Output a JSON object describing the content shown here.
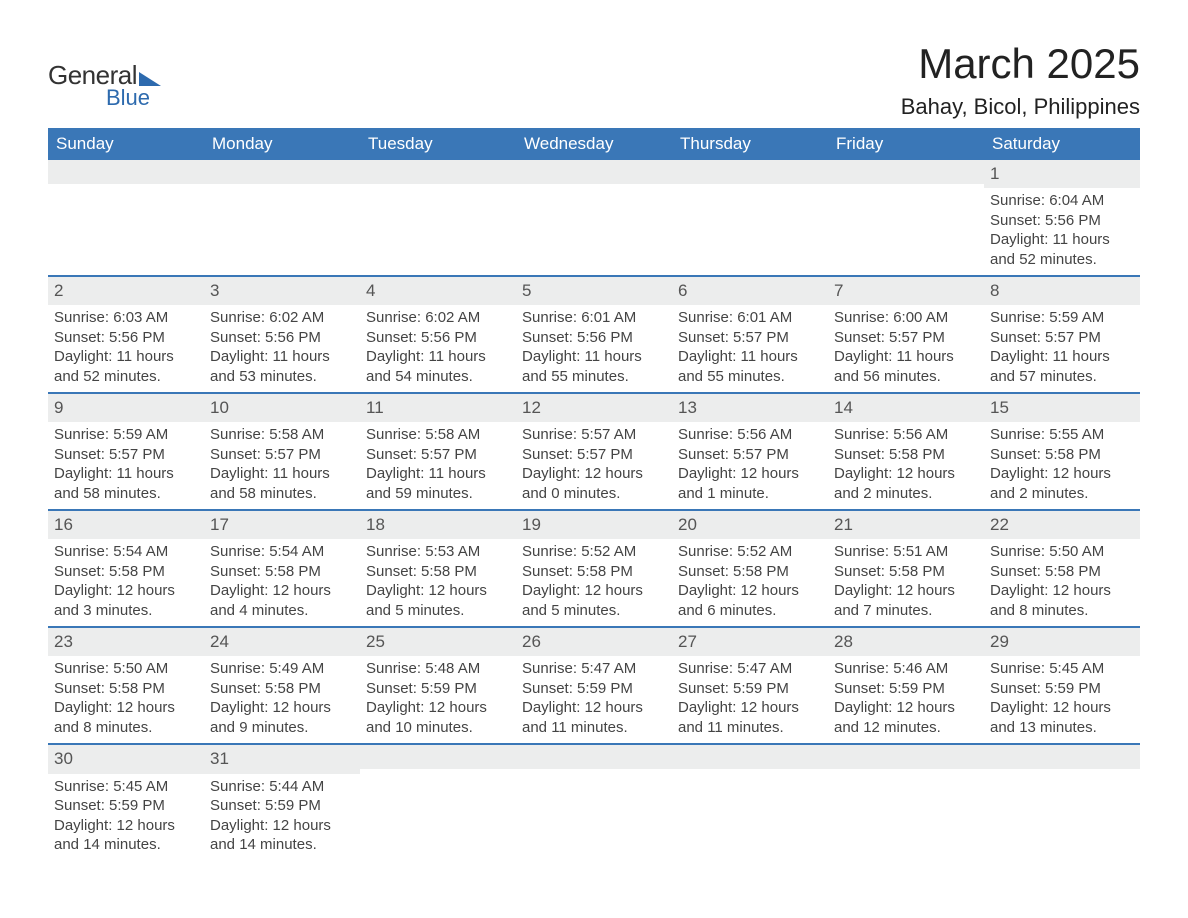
{
  "logo": {
    "text_top": "General",
    "text_bottom": "Blue"
  },
  "title": "March 2025",
  "location": "Bahay, Bicol, Philippines",
  "day_headers": [
    "Sunday",
    "Monday",
    "Tuesday",
    "Wednesday",
    "Thursday",
    "Friday",
    "Saturday"
  ],
  "colors": {
    "header_bg": "#3a77b7",
    "header_fg": "#ffffff",
    "daynum_bg": "#eceded",
    "row_divider": "#3a77b7",
    "logo_accent": "#2d6aae"
  },
  "first_weekday_index": 6,
  "days": [
    {
      "n": 1,
      "sunrise": "6:04 AM",
      "sunset": "5:56 PM",
      "daylight": "11 hours and 52 minutes."
    },
    {
      "n": 2,
      "sunrise": "6:03 AM",
      "sunset": "5:56 PM",
      "daylight": "11 hours and 52 minutes."
    },
    {
      "n": 3,
      "sunrise": "6:02 AM",
      "sunset": "5:56 PM",
      "daylight": "11 hours and 53 minutes."
    },
    {
      "n": 4,
      "sunrise": "6:02 AM",
      "sunset": "5:56 PM",
      "daylight": "11 hours and 54 minutes."
    },
    {
      "n": 5,
      "sunrise": "6:01 AM",
      "sunset": "5:56 PM",
      "daylight": "11 hours and 55 minutes."
    },
    {
      "n": 6,
      "sunrise": "6:01 AM",
      "sunset": "5:57 PM",
      "daylight": "11 hours and 55 minutes."
    },
    {
      "n": 7,
      "sunrise": "6:00 AM",
      "sunset": "5:57 PM",
      "daylight": "11 hours and 56 minutes."
    },
    {
      "n": 8,
      "sunrise": "5:59 AM",
      "sunset": "5:57 PM",
      "daylight": "11 hours and 57 minutes."
    },
    {
      "n": 9,
      "sunrise": "5:59 AM",
      "sunset": "5:57 PM",
      "daylight": "11 hours and 58 minutes."
    },
    {
      "n": 10,
      "sunrise": "5:58 AM",
      "sunset": "5:57 PM",
      "daylight": "11 hours and 58 minutes."
    },
    {
      "n": 11,
      "sunrise": "5:58 AM",
      "sunset": "5:57 PM",
      "daylight": "11 hours and 59 minutes."
    },
    {
      "n": 12,
      "sunrise": "5:57 AM",
      "sunset": "5:57 PM",
      "daylight": "12 hours and 0 minutes."
    },
    {
      "n": 13,
      "sunrise": "5:56 AM",
      "sunset": "5:57 PM",
      "daylight": "12 hours and 1 minute."
    },
    {
      "n": 14,
      "sunrise": "5:56 AM",
      "sunset": "5:58 PM",
      "daylight": "12 hours and 2 minutes."
    },
    {
      "n": 15,
      "sunrise": "5:55 AM",
      "sunset": "5:58 PM",
      "daylight": "12 hours and 2 minutes."
    },
    {
      "n": 16,
      "sunrise": "5:54 AM",
      "sunset": "5:58 PM",
      "daylight": "12 hours and 3 minutes."
    },
    {
      "n": 17,
      "sunrise": "5:54 AM",
      "sunset": "5:58 PM",
      "daylight": "12 hours and 4 minutes."
    },
    {
      "n": 18,
      "sunrise": "5:53 AM",
      "sunset": "5:58 PM",
      "daylight": "12 hours and 5 minutes."
    },
    {
      "n": 19,
      "sunrise": "5:52 AM",
      "sunset": "5:58 PM",
      "daylight": "12 hours and 5 minutes."
    },
    {
      "n": 20,
      "sunrise": "5:52 AM",
      "sunset": "5:58 PM",
      "daylight": "12 hours and 6 minutes."
    },
    {
      "n": 21,
      "sunrise": "5:51 AM",
      "sunset": "5:58 PM",
      "daylight": "12 hours and 7 minutes."
    },
    {
      "n": 22,
      "sunrise": "5:50 AM",
      "sunset": "5:58 PM",
      "daylight": "12 hours and 8 minutes."
    },
    {
      "n": 23,
      "sunrise": "5:50 AM",
      "sunset": "5:58 PM",
      "daylight": "12 hours and 8 minutes."
    },
    {
      "n": 24,
      "sunrise": "5:49 AM",
      "sunset": "5:58 PM",
      "daylight": "12 hours and 9 minutes."
    },
    {
      "n": 25,
      "sunrise": "5:48 AM",
      "sunset": "5:59 PM",
      "daylight": "12 hours and 10 minutes."
    },
    {
      "n": 26,
      "sunrise": "5:47 AM",
      "sunset": "5:59 PM",
      "daylight": "12 hours and 11 minutes."
    },
    {
      "n": 27,
      "sunrise": "5:47 AM",
      "sunset": "5:59 PM",
      "daylight": "12 hours and 11 minutes."
    },
    {
      "n": 28,
      "sunrise": "5:46 AM",
      "sunset": "5:59 PM",
      "daylight": "12 hours and 12 minutes."
    },
    {
      "n": 29,
      "sunrise": "5:45 AM",
      "sunset": "5:59 PM",
      "daylight": "12 hours and 13 minutes."
    },
    {
      "n": 30,
      "sunrise": "5:45 AM",
      "sunset": "5:59 PM",
      "daylight": "12 hours and 14 minutes."
    },
    {
      "n": 31,
      "sunrise": "5:44 AM",
      "sunset": "5:59 PM",
      "daylight": "12 hours and 14 minutes."
    }
  ],
  "labels": {
    "sunrise_prefix": "Sunrise: ",
    "sunset_prefix": "Sunset: ",
    "daylight_prefix": "Daylight: "
  }
}
